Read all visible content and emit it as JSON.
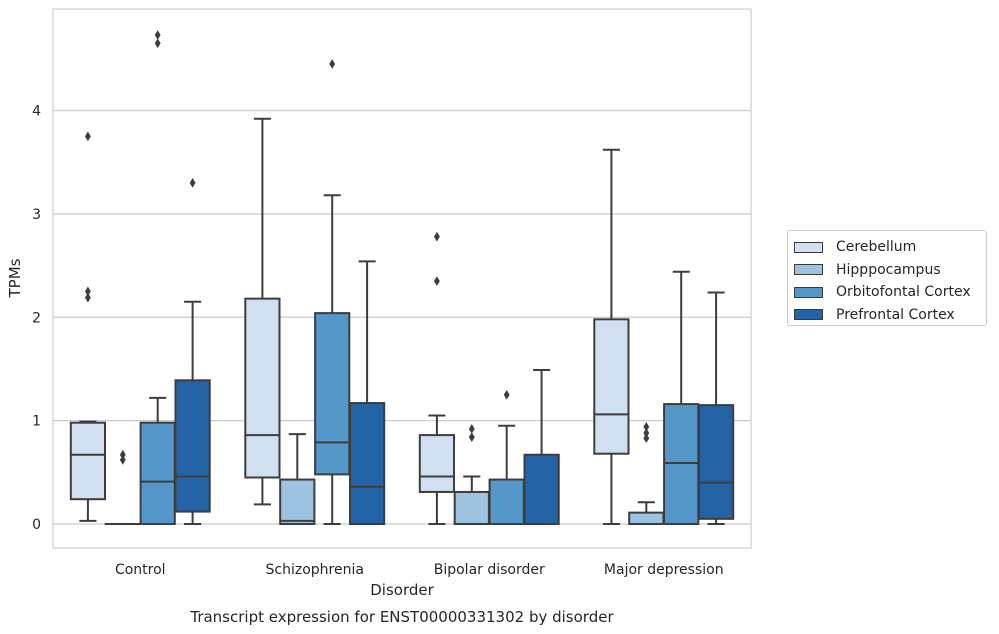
{
  "chart_data": {
    "type": "boxplot",
    "title": "Transcript expression for ENST00000331302 by disorder",
    "xlabel": "Disorder",
    "ylabel": "TPMs",
    "ylim": [
      -0.22,
      4.97
    ],
    "yticks": [
      0,
      1,
      2,
      3,
      4
    ],
    "grid": "horizontal",
    "legend_position": "right",
    "categories": [
      "Control",
      "Schizophrenia",
      "Bipolar disorder",
      "Major depression"
    ],
    "series": [
      {
        "name": "Cerebellum",
        "color": "#d0e0f1",
        "boxes": [
          {
            "whislo": 0.03,
            "q1": 0.24,
            "med": 0.67,
            "q3": 0.98,
            "whishi": 0.99,
            "fliers": [
              2.19,
              2.25,
              3.75
            ]
          },
          {
            "whislo": 0.19,
            "q1": 0.45,
            "med": 0.86,
            "q3": 2.18,
            "whishi": 3.92,
            "fliers": []
          },
          {
            "whislo": 0.0,
            "q1": 0.31,
            "med": 0.46,
            "q3": 0.86,
            "whishi": 1.05,
            "fliers": [
              2.35,
              2.78
            ]
          },
          {
            "whislo": 0.0,
            "q1": 0.68,
            "med": 1.06,
            "q3": 1.98,
            "whishi": 3.62,
            "fliers": []
          }
        ]
      },
      {
        "name": "Hipppocampus",
        "color": "#9dc3e0",
        "boxes": [
          {
            "whislo": 0.0,
            "q1": 0.0,
            "med": 0.0,
            "q3": 0.0,
            "whishi": 0.0,
            "fliers": [
              0.62,
              0.67
            ]
          },
          {
            "whislo": 0.0,
            "q1": 0.0,
            "med": 0.03,
            "q3": 0.43,
            "whishi": 0.87,
            "fliers": []
          },
          {
            "whislo": 0.0,
            "q1": 0.0,
            "med": 0.0,
            "q3": 0.31,
            "whishi": 0.46,
            "fliers": [
              0.84,
              0.92
            ]
          },
          {
            "whislo": 0.0,
            "q1": 0.0,
            "med": 0.0,
            "q3": 0.11,
            "whishi": 0.21,
            "fliers": [
              0.83,
              0.88,
              0.94
            ]
          }
        ]
      },
      {
        "name": "Orbitofontal Cortex",
        "color": "#5597c8",
        "boxes": [
          {
            "whislo": 0.0,
            "q1": 0.0,
            "med": 0.41,
            "q3": 0.98,
            "whishi": 1.22,
            "fliers": [
              4.65,
              4.73
            ]
          },
          {
            "whislo": 0.0,
            "q1": 0.48,
            "med": 0.79,
            "q3": 2.04,
            "whishi": 3.18,
            "fliers": [
              4.45
            ]
          },
          {
            "whislo": 0.0,
            "q1": 0.0,
            "med": 0.0,
            "q3": 0.43,
            "whishi": 0.95,
            "fliers": [
              1.25
            ]
          },
          {
            "whislo": 0.0,
            "q1": 0.0,
            "med": 0.59,
            "q3": 1.16,
            "whishi": 2.44,
            "fliers": []
          }
        ]
      },
      {
        "name": "Prefrontal Cortex",
        "color": "#2463a6",
        "boxes": [
          {
            "whislo": 0.0,
            "q1": 0.12,
            "med": 0.46,
            "q3": 1.39,
            "whishi": 2.15,
            "fliers": [
              3.3
            ]
          },
          {
            "whislo": 0.0,
            "q1": 0.0,
            "med": 0.36,
            "q3": 1.17,
            "whishi": 2.54,
            "fliers": []
          },
          {
            "whislo": 0.0,
            "q1": 0.0,
            "med": 0.0,
            "q3": 0.67,
            "whishi": 1.49,
            "fliers": []
          },
          {
            "whislo": 0.0,
            "q1": 0.05,
            "med": 0.4,
            "q3": 1.15,
            "whishi": 2.24,
            "fliers": []
          }
        ]
      }
    ]
  }
}
